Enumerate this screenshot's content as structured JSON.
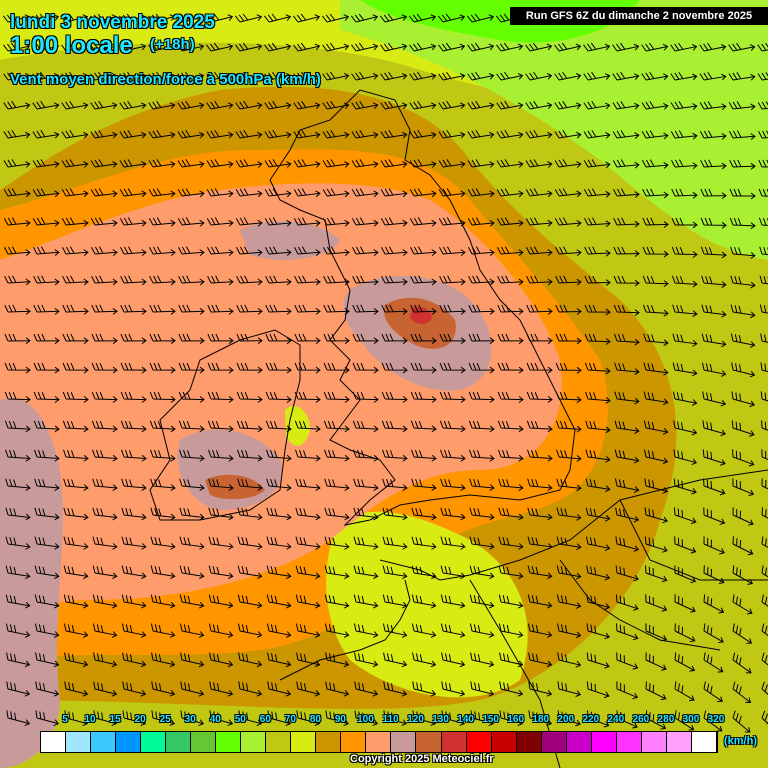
{
  "header": {
    "date": "lundi 3 novembre 2025",
    "time": "1:00 locale",
    "lead": "(+18h)",
    "parameter": "Vent moyen direction/force à 500hPa (km/h)",
    "run": "Run GFS 6Z du dimanche 2 novembre 2025"
  },
  "legend": {
    "unit": "(km/h)",
    "labels": [
      "5",
      "10",
      "15",
      "20",
      "25",
      "30",
      "40",
      "50",
      "60",
      "70",
      "80",
      "90",
      "100",
      "110",
      "120",
      "130",
      "140",
      "150",
      "160",
      "180",
      "200",
      "220",
      "240",
      "260",
      "280",
      "300",
      "320"
    ],
    "colors": [
      "#ffffff",
      "#a0e6ff",
      "#3cc8ff",
      "#0096ff",
      "#00fa96",
      "#32c864",
      "#64c832",
      "#64ff00",
      "#aaf032",
      "#c0c814",
      "#d8ec14",
      "#cc9600",
      "#ff9600",
      "#ff9c6c",
      "#c89a9a",
      "#c86432",
      "#d03232",
      "#ff0000",
      "#c80000",
      "#800000",
      "#a0007c",
      "#c800c8",
      "#ff00ff",
      "#ff32ff",
      "#ff80ff",
      "#ffa0ff",
      "#ffffff"
    ]
  },
  "map": {
    "wind_direction": "west to east (westerly)",
    "colors": {
      "background": "#d8ec14",
      "band_80_90": "#cc9600",
      "band_90_100": "#ff9600",
      "band_100_110": "#ff9c6c",
      "band_110_120": "#c89a9a",
      "band_120_130": "#c86432",
      "band_130_140": "#d03232",
      "band_50_60": "#aaf032",
      "band_40_50": "#64ff00"
    }
  },
  "footer": {
    "copyright": "Copyright 2025 Meteociel.fr"
  }
}
